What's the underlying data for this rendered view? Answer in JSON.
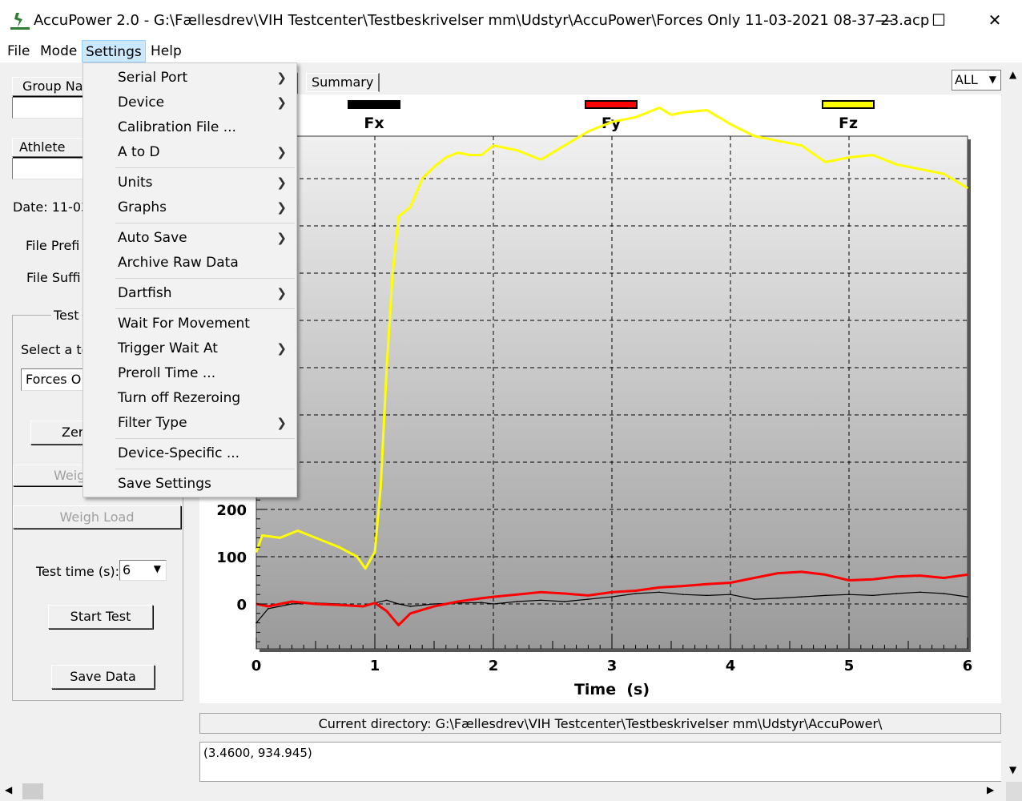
{
  "window": {
    "title": "AccuPower 2.0  -  G:\\Fællesdrev\\VIH Testcenter\\Testbeskrivelser mm\\Udstyr\\AccuPower\\Forces Only 11-03-2021  08-37-23.acp",
    "minimize": "—",
    "maximize": "☐",
    "close": "✕"
  },
  "menubar": [
    "File",
    "Mode",
    "Settings",
    "Help"
  ],
  "settings_menu": [
    {
      "label": "Serial Port",
      "submenu": true,
      "enabled": true
    },
    {
      "label": "Device",
      "submenu": true,
      "enabled": true
    },
    {
      "label": "Calibration File ...",
      "submenu": false,
      "enabled": true
    },
    {
      "label": "A to D",
      "submenu": true,
      "enabled": true
    },
    {
      "label": "Units",
      "submenu": true,
      "enabled": true
    },
    {
      "label": "Graphs",
      "submenu": true,
      "enabled": true
    },
    {
      "label": "Auto Save",
      "submenu": true,
      "enabled": true
    },
    {
      "label": "Archive Raw Data",
      "submenu": false,
      "enabled": true
    },
    {
      "label": "Dartfish",
      "submenu": true,
      "enabled": true
    },
    {
      "label": "Wait For Movement",
      "submenu": false,
      "enabled": true
    },
    {
      "label": "Trigger Wait At",
      "submenu": true,
      "enabled": true
    },
    {
      "label": "Preroll Time ...",
      "submenu": false,
      "enabled": true
    },
    {
      "label": "Turn off Rezeroing",
      "submenu": false,
      "enabled": true
    },
    {
      "label": "Filter Type",
      "submenu": true,
      "enabled": true
    },
    {
      "label": "Device-Specific ...",
      "submenu": false,
      "enabled": false
    },
    {
      "label": "Save Settings",
      "submenu": false,
      "enabled": true
    }
  ],
  "left_panel": {
    "group_name_button": "Group Na",
    "group_name_value": "",
    "athlete_name_button": "Athlete Na",
    "athlete_name_value": "",
    "date_label": "Date: 11-03",
    "file_prefix_label": "File Prefi",
    "file_suffix_label": "File Suffi",
    "test_group_label": "Test",
    "select_test_label": "Select a te",
    "test_select_value": "Forces O",
    "zero_button": "Zer",
    "weigh_button": "Weig",
    "weigh_load_button": "Weigh Load",
    "test_time_label": "Test time (s):",
    "test_time_value": "6",
    "start_test_button": "Start Test",
    "save_data_button": "Save Data"
  },
  "tabs": {
    "summary": "Summary"
  },
  "channel_select": "ALL",
  "status": {
    "current_directory": "Current directory: G:\\Fællesdrev\\VIH Testcenter\\Testbeskrivelser mm\\Udstyr\\AccuPower\\",
    "cursor_readout": "(3.4600, 934.945)"
  },
  "chart_data": {
    "type": "line",
    "xlabel": "Time  (s)",
    "ylabel": "",
    "xlim": [
      0,
      6
    ],
    "ylim": [
      -100,
      1050
    ],
    "xticks": [
      0,
      1,
      2,
      3,
      4,
      5,
      6
    ],
    "yticks_labeled": [
      0,
      100,
      200
    ],
    "grid": true,
    "legend_placement": "top",
    "series": [
      {
        "name": "Fx",
        "color": "#000000",
        "x": [
          0,
          0.1,
          0.3,
          0.5,
          0.7,
          0.9,
          1.0,
          1.1,
          1.2,
          1.3,
          1.5,
          1.7,
          1.9,
          2.0,
          2.2,
          2.4,
          2.6,
          2.8,
          3.0,
          3.2,
          3.4,
          3.6,
          3.8,
          4.0,
          4.2,
          4.4,
          4.6,
          4.8,
          5.0,
          5.2,
          5.4,
          5.6,
          5.8,
          6.0
        ],
        "y": [
          -40,
          -10,
          0,
          2,
          0,
          -5,
          2,
          8,
          0,
          -5,
          0,
          2,
          3,
          0,
          5,
          8,
          5,
          10,
          15,
          22,
          25,
          20,
          18,
          20,
          10,
          12,
          15,
          18,
          20,
          18,
          22,
          25,
          22,
          15
        ]
      },
      {
        "name": "Fy",
        "color": "#ff0000",
        "x": [
          0,
          0.1,
          0.3,
          0.5,
          0.7,
          0.9,
          1.0,
          1.1,
          1.2,
          1.3,
          1.5,
          1.7,
          1.9,
          2.0,
          2.2,
          2.4,
          2.6,
          2.8,
          3.0,
          3.2,
          3.4,
          3.6,
          3.8,
          4.0,
          4.2,
          4.4,
          4.6,
          4.8,
          5.0,
          5.2,
          5.4,
          5.6,
          5.8,
          6.0
        ],
        "y": [
          0,
          -5,
          5,
          0,
          -2,
          -5,
          2,
          -15,
          -45,
          -20,
          -5,
          5,
          12,
          15,
          20,
          25,
          22,
          18,
          25,
          28,
          35,
          38,
          42,
          45,
          55,
          65,
          68,
          62,
          50,
          52,
          58,
          60,
          55,
          62
        ]
      },
      {
        "name": "Fz",
        "color": "#ffff00",
        "x": [
          0,
          0.05,
          0.2,
          0.35,
          0.5,
          0.7,
          0.85,
          0.92,
          1.0,
          1.05,
          1.1,
          1.15,
          1.2,
          1.25,
          1.3,
          1.4,
          1.5,
          1.6,
          1.7,
          1.8,
          1.9,
          2.0,
          2.2,
          2.4,
          2.6,
          2.8,
          3.0,
          3.2,
          3.4,
          3.5,
          3.6,
          3.8,
          4.0,
          4.2,
          4.4,
          4.6,
          4.8,
          5.0,
          5.2,
          5.4,
          5.6,
          5.8,
          6.0
        ],
        "y": [
          110,
          145,
          140,
          155,
          140,
          120,
          100,
          75,
          110,
          250,
          500,
          700,
          820,
          830,
          840,
          900,
          925,
          945,
          955,
          950,
          950,
          970,
          960,
          940,
          970,
          1000,
          1020,
          1030,
          1050,
          1035,
          1040,
          1045,
          1015,
          990,
          980,
          970,
          935,
          945,
          950,
          930,
          920,
          910,
          880
        ]
      }
    ]
  }
}
